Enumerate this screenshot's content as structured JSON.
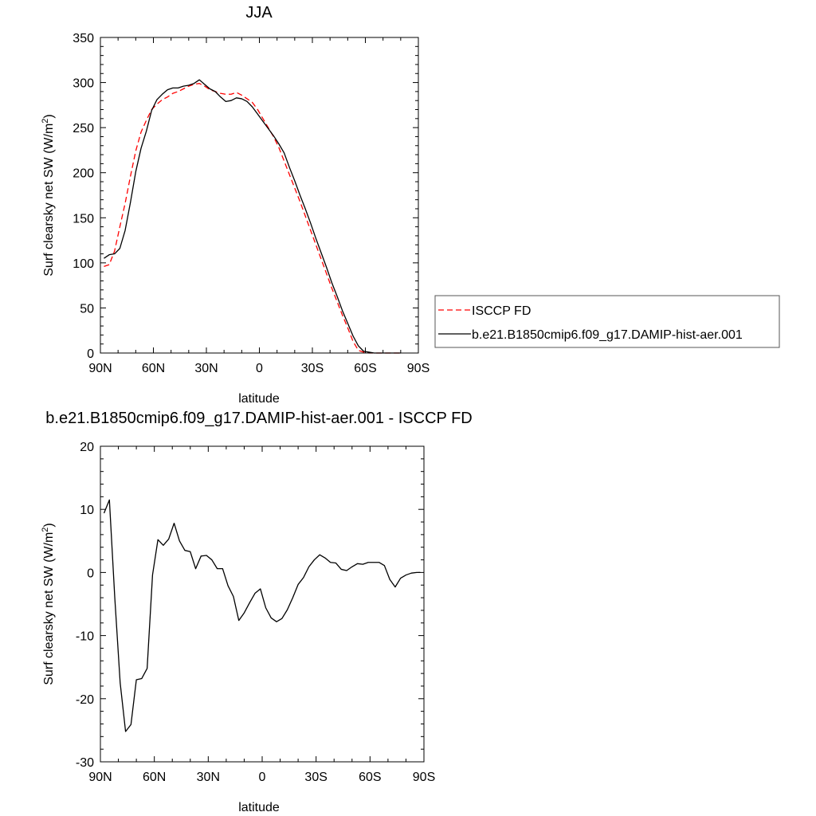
{
  "chart_data": [
    {
      "type": "line",
      "title": "JJA",
      "xlabel": "latitude",
      "ylabel": "Surf clearsky net SW (W/m",
      "ylabel_sup": "2",
      "ylabel_close": ")",
      "xlim": [
        90,
        -90
      ],
      "ylim": [
        0,
        350
      ],
      "x_ticks": [
        90,
        60,
        30,
        0,
        -30,
        -60,
        -90
      ],
      "x_tick_labels": [
        "90N",
        "60N",
        "30N",
        "0",
        "30S",
        "60S",
        "90S"
      ],
      "y_ticks": [
        0,
        50,
        100,
        150,
        200,
        250,
        300,
        350
      ],
      "y_tick_labels": [
        "0",
        "50",
        "100",
        "150",
        "200",
        "250",
        "300",
        "350"
      ],
      "grid": false,
      "legend_position": "right",
      "series": [
        {
          "name": "ISCCP FD",
          "color": "#ff0000",
          "dash": "dashed",
          "x": [
            88,
            85,
            82,
            79,
            76,
            73,
            70,
            67,
            64,
            61,
            58,
            55,
            52,
            49,
            46,
            43,
            40,
            37,
            34,
            31,
            28,
            25,
            22,
            19,
            16,
            13,
            10,
            7,
            4,
            1,
            -2,
            -5,
            -8,
            -11,
            -14,
            -17,
            -20,
            -23,
            -26,
            -29,
            -32,
            -35,
            -38,
            -41,
            -44,
            -47,
            -50,
            -53,
            -56,
            -59,
            -62,
            -65,
            -68,
            -71,
            -74,
            -77,
            -80
          ],
          "y": [
            96,
            98,
            113,
            140,
            166,
            196,
            224,
            245,
            258,
            270,
            276,
            281,
            284,
            288,
            290,
            293,
            296,
            298,
            299,
            296,
            292,
            290,
            288,
            287,
            287,
            289,
            286,
            282,
            278,
            270,
            260,
            250,
            240,
            228,
            213,
            198,
            183,
            168,
            152,
            136,
            120,
            104,
            88,
            72,
            57,
            42,
            28,
            13,
            3,
            1,
            0,
            0,
            0,
            0,
            0,
            0,
            0
          ]
        },
        {
          "name": "b.e21.B1850cmip6.f09_g17.DAMIP-hist-aer.001",
          "color": "#000000",
          "dash": "solid",
          "x": [
            88,
            85,
            82,
            79,
            76,
            73,
            70,
            67,
            64,
            61,
            58,
            55,
            52,
            49,
            46,
            43,
            40,
            37,
            34,
            31,
            28,
            25,
            22,
            19,
            16,
            13,
            10,
            7,
            4,
            1,
            -2,
            -5,
            -8,
            -11,
            -14,
            -17,
            -20,
            -23,
            -26,
            -29,
            -32,
            -35,
            -38,
            -41,
            -44,
            -47,
            -50,
            -53,
            -56,
            -59,
            -62,
            -65,
            -68,
            -71,
            -74,
            -77,
            -80
          ],
          "y": [
            105,
            109,
            110,
            116,
            136,
            167,
            201,
            227,
            246,
            269,
            281,
            287,
            292,
            294,
            294,
            296,
            297,
            299,
            303,
            298,
            293,
            290,
            284,
            279,
            280,
            283,
            282,
            279,
            273,
            265,
            257,
            249,
            241,
            232,
            222,
            206,
            191,
            175,
            160,
            144,
            127,
            111,
            95,
            78,
            63,
            47,
            33,
            19,
            8,
            2,
            1,
            0,
            0,
            0,
            0,
            0,
            0
          ]
        }
      ]
    },
    {
      "type": "line",
      "title": "b.e21.B1850cmip6.f09_g17.DAMIP-hist-aer.001 - ISCCP FD",
      "xlabel": "latitude",
      "ylabel": "Surf clearsky net SW (W/m",
      "ylabel_sup": "2",
      "ylabel_close": ")",
      "xlim": [
        90,
        -90
      ],
      "ylim": [
        -30,
        20
      ],
      "x_ticks": [
        90,
        60,
        30,
        0,
        -30,
        -60,
        -90
      ],
      "x_tick_labels": [
        "90N",
        "60N",
        "30N",
        "0",
        "30S",
        "60S",
        "90S"
      ],
      "y_ticks": [
        -30,
        -20,
        -10,
        0,
        10,
        20
      ],
      "y_tick_labels": [
        "-30",
        "-20",
        "-10",
        "0",
        "10",
        "20"
      ],
      "grid": false,
      "series": [
        {
          "color": "#000000",
          "dash": "solid",
          "x": [
            88,
            85,
            82,
            79,
            76,
            73,
            70,
            67,
            64,
            61,
            58,
            55,
            52,
            49,
            46,
            43,
            40,
            37,
            34,
            31,
            28,
            25,
            22,
            19,
            16,
            13,
            10,
            7,
            4,
            1,
            -2,
            -5,
            -8,
            -11,
            -14,
            -17,
            -20,
            -23,
            -26,
            -29,
            -32,
            -35,
            -38,
            -41,
            -44,
            -47,
            -50,
            -53,
            -56,
            -59,
            -62,
            -65,
            -68,
            -71,
            -74,
            -77,
            -80,
            -83,
            -86,
            -88
          ],
          "y": [
            9.4,
            11.5,
            -4,
            -17.5,
            -25.2,
            -24.1,
            -17,
            -16.8,
            -15.2,
            -0.4,
            5.2,
            4.3,
            5.3,
            7.8,
            5,
            3.5,
            3.3,
            0.6,
            2.6,
            2.7,
            2,
            0.6,
            0.6,
            -2.1,
            -3.8,
            -7.6,
            -6.4,
            -4.8,
            -3.3,
            -2.6,
            -5.6,
            -7.2,
            -7.8,
            -7.3,
            -5.9,
            -4,
            -1.9,
            -0.8,
            0.9,
            2,
            2.8,
            2.3,
            1.6,
            1.5,
            0.5,
            0.3,
            0.9,
            1.4,
            1.3,
            1.6,
            1.6,
            1.6,
            1.1,
            -1.1,
            -2.3,
            -0.9,
            -0.4,
            -0.1,
            0,
            0
          ]
        }
      ]
    }
  ]
}
